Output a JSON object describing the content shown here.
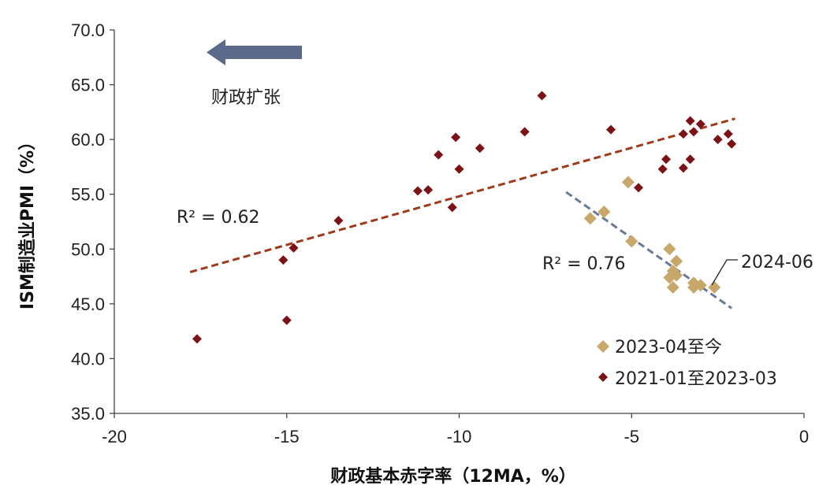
{
  "chart_data": {
    "type": "scatter",
    "title": "",
    "xlabel": "财政基本赤字率（12MA，%）",
    "ylabel": "ISM制造业PMI（%）",
    "xlim": [
      -20,
      0
    ],
    "ylim": [
      35,
      70
    ],
    "x_ticks": [
      -20,
      -15,
      -10,
      -5,
      0
    ],
    "x_tick_labels": [
      "-20",
      "-15",
      "-10",
      "-5",
      "0"
    ],
    "y_ticks": [
      35,
      40,
      45,
      50,
      55,
      60,
      65,
      70
    ],
    "y_tick_labels": [
      "35.0",
      "40.0",
      "45.0",
      "50.0",
      "55.0",
      "60.0",
      "65.0",
      "70.0"
    ],
    "grid": false,
    "legend_position": "bottom-right",
    "series": [
      {
        "name": "2023-04至今",
        "color": "#c8a76a",
        "marker": "diamond",
        "points": [
          [
            -6.2,
            52.8
          ],
          [
            -5.8,
            53.4
          ],
          [
            -5.1,
            56.1
          ],
          [
            -5.0,
            50.7
          ],
          [
            -3.9,
            50.0
          ],
          [
            -3.7,
            48.9
          ],
          [
            -3.8,
            48.0
          ],
          [
            -3.9,
            47.4
          ],
          [
            -3.8,
            46.5
          ],
          [
            -3.7,
            47.6
          ],
          [
            -3.2,
            46.9
          ],
          [
            -3.2,
            46.5
          ],
          [
            -3.0,
            46.7
          ],
          [
            -2.6,
            46.5
          ]
        ]
      },
      {
        "name": "2021-01至2023-03",
        "color": "#7b1215",
        "marker": "diamond",
        "points": [
          [
            -17.6,
            41.8
          ],
          [
            -15.1,
            49.0
          ],
          [
            -14.8,
            50.1
          ],
          [
            -15.0,
            43.5
          ],
          [
            -13.5,
            52.6
          ],
          [
            -11.2,
            55.3
          ],
          [
            -10.9,
            55.4
          ],
          [
            -10.2,
            53.8
          ],
          [
            -10.6,
            58.6
          ],
          [
            -10.1,
            60.2
          ],
          [
            -10.0,
            57.3
          ],
          [
            -9.4,
            59.2
          ],
          [
            -8.1,
            60.7
          ],
          [
            -7.6,
            64.0
          ],
          [
            -5.6,
            60.9
          ],
          [
            -4.8,
            55.6
          ],
          [
            -4.1,
            57.3
          ],
          [
            -4.0,
            58.2
          ],
          [
            -3.5,
            60.5
          ],
          [
            -3.5,
            57.4
          ],
          [
            -3.3,
            58.2
          ],
          [
            -3.3,
            61.7
          ],
          [
            -3.2,
            60.7
          ],
          [
            -3.0,
            61.4
          ],
          [
            -2.5,
            60.0
          ],
          [
            -2.2,
            60.5
          ],
          [
            -2.1,
            59.6
          ]
        ]
      }
    ],
    "trendlines": [
      {
        "series": "2021-01至2023-03",
        "color": "#a0391c",
        "x": [
          -17.8,
          -2.0
        ],
        "y": [
          47.9,
          61.9
        ],
        "r2_label": "R² = 0.62"
      },
      {
        "series": "2023-04至今",
        "color": "#6b7896",
        "x": [
          -6.9,
          -2.1
        ],
        "y": [
          55.2,
          44.6
        ],
        "r2_label": "R² = 0.76"
      }
    ],
    "annotations": [
      {
        "text": "财政扩张"
      },
      {
        "text": "2024-06"
      }
    ]
  }
}
